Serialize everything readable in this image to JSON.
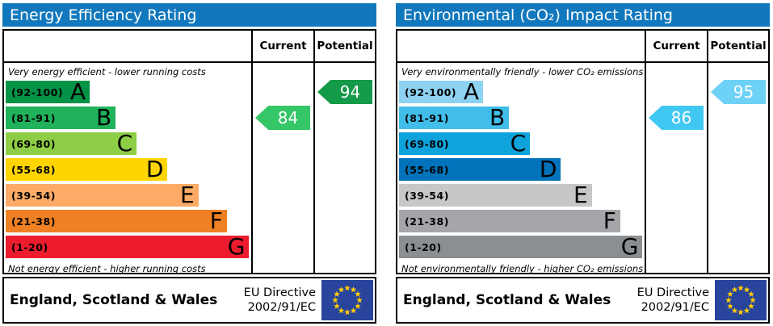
{
  "page": {
    "background": "#ffffff",
    "border_color": "#000000"
  },
  "eu_flag": {
    "background": "#28449c",
    "star_color": "#ffcc00"
  },
  "panels": [
    {
      "title": "Energy Efficiency Rating",
      "header_color": "#1278bd",
      "columns": {
        "current": "Current",
        "potential": "Potential"
      },
      "caption_top": "Very energy efficient - lower running costs",
      "caption_bottom": "Not energy efficient - higher running costs",
      "bands": [
        {
          "range": "(92-100)",
          "letter": "A",
          "color": "#029346"
        },
        {
          "range": "(81-91)",
          "letter": "B",
          "color": "#1fb25b"
        },
        {
          "range": "(69-80)",
          "letter": "C",
          "color": "#8dce46"
        },
        {
          "range": "(55-68)",
          "letter": "D",
          "color": "#ffd500"
        },
        {
          "range": "(39-54)",
          "letter": "E",
          "color": "#fcaa65"
        },
        {
          "range": "(21-38)",
          "letter": "F",
          "color": "#ef8023"
        },
        {
          "range": "(1-20)",
          "letter": "G",
          "color": "#ec1c2e"
        }
      ],
      "current": {
        "value": "84",
        "band_index": 1,
        "color": "#35c667"
      },
      "potential": {
        "value": "94",
        "band_index": 0,
        "color": "#149a49"
      },
      "footer": {
        "region": "England, Scotland & Wales",
        "directive_line1": "EU Directive",
        "directive_line2": "2002/91/EC"
      }
    },
    {
      "title": "Environmental (CO₂) Impact Rating",
      "header_color": "#1278bd",
      "columns": {
        "current": "Current",
        "potential": "Potential"
      },
      "caption_top": "Very environmentally friendly - lower CO₂ emissions",
      "caption_bottom": "Not environmentally friendly - higher CO₂ emissions",
      "bands": [
        {
          "range": "(92-100)",
          "letter": "A",
          "color": "#8ed2f2"
        },
        {
          "range": "(81-91)",
          "letter": "B",
          "color": "#41bde9"
        },
        {
          "range": "(69-80)",
          "letter": "C",
          "color": "#0fa3dc"
        },
        {
          "range": "(55-68)",
          "letter": "D",
          "color": "#0073bb"
        },
        {
          "range": "(39-54)",
          "letter": "E",
          "color": "#c6c7c9"
        },
        {
          "range": "(21-38)",
          "letter": "F",
          "color": "#a4a6a9"
        },
        {
          "range": "(1-20)",
          "letter": "G",
          "color": "#8c8f92"
        }
      ],
      "current": {
        "value": "86",
        "band_index": 1,
        "color": "#41c8f2"
      },
      "potential": {
        "value": "95",
        "band_index": 0,
        "color": "#6ed1f6"
      },
      "footer": {
        "region": "England, Scotland & Wales",
        "directive_line1": "EU Directive",
        "directive_line2": "2002/91/EC"
      }
    }
  ],
  "chart_data": [
    {
      "type": "bar",
      "orientation": "horizontal",
      "title": "Energy Efficiency Rating",
      "categories": [
        "A",
        "B",
        "C",
        "D",
        "E",
        "F",
        "G"
      ],
      "band_ranges": [
        "92-100",
        "81-91",
        "69-80",
        "55-68",
        "39-54",
        "21-38",
        "1-20"
      ],
      "band_colors": [
        "#029346",
        "#1fb25b",
        "#8dce46",
        "#ffd500",
        "#fcaa65",
        "#ef8023",
        "#ec1c2e"
      ],
      "bar_lengths_pct": [
        34,
        44.5,
        53,
        65.5,
        78,
        89.5,
        98.5
      ],
      "markers": [
        {
          "name": "Current",
          "value": 84,
          "band": "B"
        },
        {
          "name": "Potential",
          "value": 94,
          "band": "A"
        }
      ],
      "scale": [
        1,
        100
      ],
      "annotations": [
        "Very energy efficient - lower running costs",
        "Not energy efficient - higher running costs"
      ],
      "footer": "England, Scotland & Wales — EU Directive 2002/91/EC"
    },
    {
      "type": "bar",
      "orientation": "horizontal",
      "title": "Environmental (CO₂) Impact Rating",
      "categories": [
        "A",
        "B",
        "C",
        "D",
        "E",
        "F",
        "G"
      ],
      "band_ranges": [
        "92-100",
        "81-91",
        "69-80",
        "55-68",
        "39-54",
        "21-38",
        "1-20"
      ],
      "band_colors": [
        "#8ed2f2",
        "#41bde9",
        "#0fa3dc",
        "#0073bb",
        "#c6c7c9",
        "#a4a6a9",
        "#8c8f92"
      ],
      "bar_lengths_pct": [
        34,
        44.5,
        53,
        65.5,
        78,
        89.5,
        98.5
      ],
      "markers": [
        {
          "name": "Current",
          "value": 86,
          "band": "B"
        },
        {
          "name": "Potential",
          "value": 95,
          "band": "A"
        }
      ],
      "scale": [
        1,
        100
      ],
      "annotations": [
        "Very environmentally friendly - lower CO₂ emissions",
        "Not environmentally friendly - higher CO₂ emissions"
      ],
      "footer": "England, Scotland & Wales — EU Directive 2002/91/EC"
    }
  ]
}
